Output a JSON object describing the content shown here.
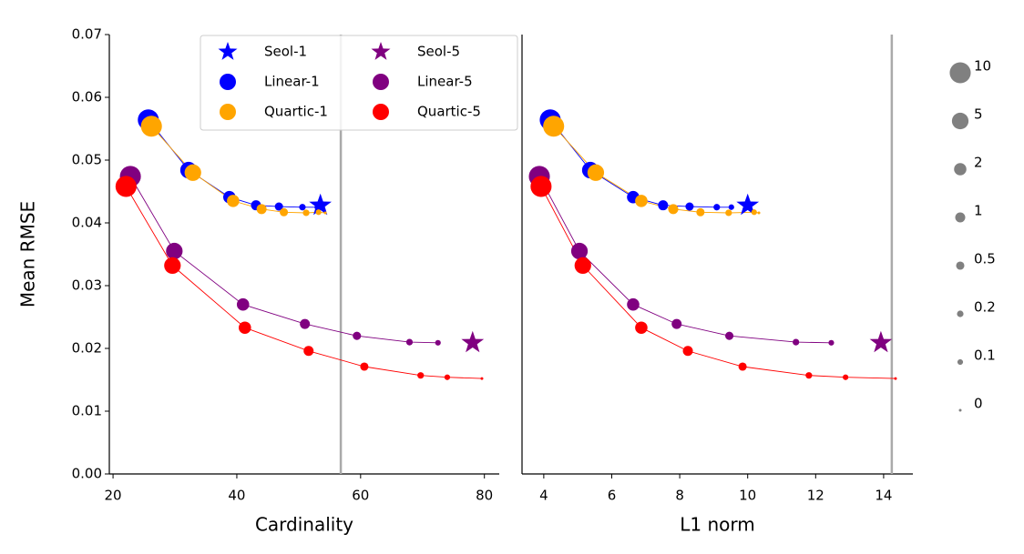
{
  "chart_data": [
    {
      "type": "scatter",
      "x_label": "Cardinality",
      "y_label": "Mean RMSE",
      "xlim": [
        19.4,
        82.4
      ],
      "ylim": [
        0,
        0.07
      ],
      "xticks": [
        20,
        40,
        60,
        80
      ],
      "yticks": [
        {
          "value": 0,
          "label": "0.00"
        },
        {
          "value": 0.01,
          "label": "0.01"
        },
        {
          "value": 0.02,
          "label": "0.02"
        },
        {
          "value": 0.03,
          "label": "0.03"
        },
        {
          "value": 0.04,
          "label": "0.04"
        },
        {
          "value": 0.05,
          "label": "0.05"
        },
        {
          "value": 0.06,
          "label": "0.06"
        },
        {
          "value": 0.07,
          "label": "0.07"
        }
      ],
      "vlines": [
        56.8
      ],
      "vline_color": "#aaaaaa",
      "legend": true,
      "series": [
        {
          "name": "Seol-1",
          "color": "#0000ff",
          "marker": "star",
          "x": [
            53.5
          ],
          "values": [
            0.0428
          ]
        },
        {
          "name": "Linear-1",
          "color": "#0000ff",
          "marker": "circle",
          "x": [
            25.7,
            32.2,
            38.8,
            43.1,
            46.8,
            50.6,
            53.0
          ],
          "values": [
            0.0564,
            0.0484,
            0.0441,
            0.0428,
            0.0426,
            0.0425,
            0.0425
          ],
          "sizes": [
            10,
            5,
            2,
            1,
            0.5,
            0.2,
            0.1
          ]
        },
        {
          "name": "Quartic-1",
          "color": "#ffa500",
          "marker": "circle",
          "x": [
            26.2,
            32.9,
            39.4,
            44.0,
            47.6,
            51.2,
            53.2,
            54.3
          ],
          "values": [
            0.0554,
            0.048,
            0.0435,
            0.0422,
            0.0417,
            0.0416,
            0.0417,
            0.0416
          ],
          "sizes": [
            10,
            5,
            2,
            1,
            0.5,
            0.2,
            0.1,
            0
          ]
        },
        {
          "name": "Seol-5",
          "color": "#800080",
          "marker": "star",
          "x": [
            78.1
          ],
          "values": [
            0.0209
          ]
        },
        {
          "name": "Linear-5",
          "color": "#800080",
          "marker": "circle",
          "x": [
            22.8,
            29.9,
            41.0,
            51.0,
            59.4,
            67.9,
            72.5
          ],
          "values": [
            0.0474,
            0.0355,
            0.027,
            0.0239,
            0.022,
            0.021,
            0.0209
          ],
          "sizes": [
            10,
            5,
            2,
            1,
            0.5,
            0.2,
            0.1
          ]
        },
        {
          "name": "Quartic-5",
          "color": "#ff0000",
          "marker": "circle",
          "x": [
            22.1,
            29.6,
            41.3,
            51.6,
            60.6,
            69.7,
            74.0,
            79.6
          ],
          "values": [
            0.0458,
            0.0332,
            0.0233,
            0.0196,
            0.0171,
            0.0157,
            0.0154,
            0.0152
          ],
          "sizes": [
            10,
            5,
            2,
            1,
            0.5,
            0.2,
            0.1,
            0
          ]
        }
      ]
    },
    {
      "type": "scatter",
      "x_label": "L1 norm",
      "xlim": [
        3.36,
        14.86
      ],
      "ylim": [
        0,
        0.07
      ],
      "xticks": [
        4,
        6,
        8,
        10,
        12,
        14
      ],
      "vlines": [
        14.24
      ],
      "vline_color": "#aaaaaa",
      "legend": false,
      "series": [
        {
          "color": "#0000ff",
          "marker": "star",
          "x": [
            10.0
          ],
          "values": [
            0.0428
          ]
        },
        {
          "color": "#0000ff",
          "marker": "circle",
          "x": [
            4.19,
            5.37,
            6.63,
            7.51,
            8.29,
            9.09,
            9.52
          ],
          "values": [
            0.0564,
            0.0484,
            0.0441,
            0.0428,
            0.0426,
            0.0425,
            0.0425
          ],
          "sizes": [
            10,
            5,
            2,
            1,
            0.5,
            0.2,
            0.1
          ]
        },
        {
          "color": "#ffa500",
          "marker": "circle",
          "x": [
            4.29,
            5.53,
            6.87,
            7.81,
            8.61,
            9.44,
            10.19,
            10.33
          ],
          "values": [
            0.0554,
            0.048,
            0.0435,
            0.0422,
            0.0417,
            0.0416,
            0.0417,
            0.0416
          ],
          "sizes": [
            10,
            5,
            2,
            1,
            0.5,
            0.2,
            0.1,
            0
          ]
        },
        {
          "color": "#800080",
          "marker": "star",
          "x": [
            13.92
          ],
          "values": [
            0.0209
          ]
        },
        {
          "color": "#800080",
          "marker": "circle",
          "x": [
            3.87,
            5.05,
            6.63,
            7.91,
            9.46,
            11.42,
            12.46
          ],
          "values": [
            0.0474,
            0.0355,
            0.027,
            0.0239,
            0.022,
            0.021,
            0.0209
          ],
          "sizes": [
            10,
            5,
            2,
            1,
            0.5,
            0.2,
            0.1
          ]
        },
        {
          "color": "#ff0000",
          "marker": "circle",
          "x": [
            3.92,
            5.15,
            6.87,
            8.24,
            9.85,
            11.8,
            12.88,
            14.35
          ],
          "values": [
            0.0458,
            0.0332,
            0.0233,
            0.0196,
            0.0171,
            0.0157,
            0.0154,
            0.0152
          ],
          "sizes": [
            10,
            5,
            2,
            1,
            0.5,
            0.2,
            0.1,
            0
          ]
        }
      ]
    }
  ],
  "size_legend": {
    "values": [
      10,
      5,
      2,
      1,
      0.5,
      0.2,
      0.1,
      0
    ],
    "color": "#808080"
  }
}
